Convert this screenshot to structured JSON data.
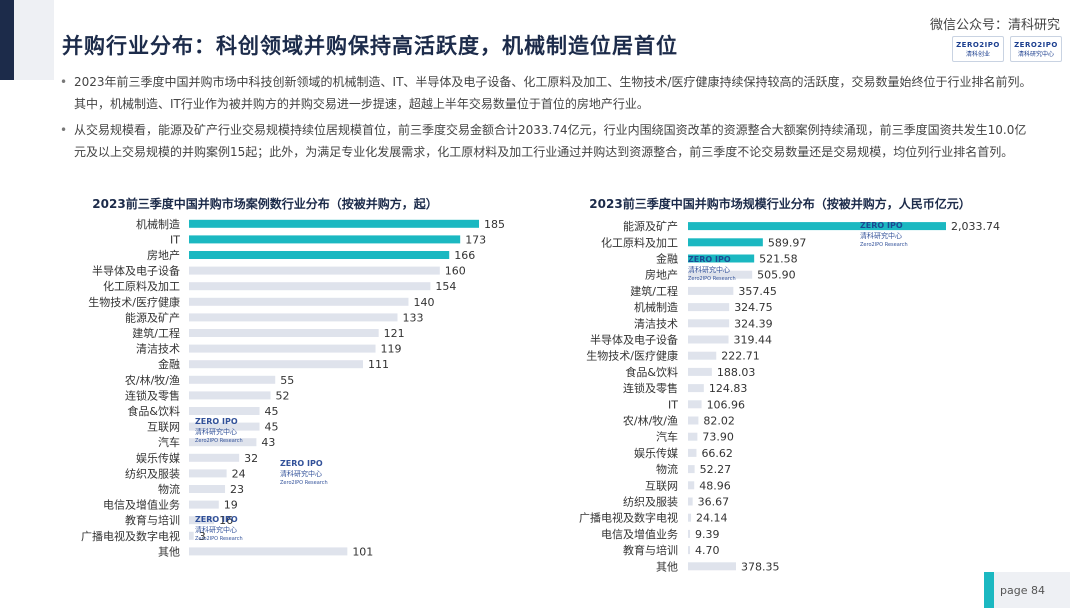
{
  "page": {
    "title": "并购行业分布：科创领域并购保持高活跃度，机械制造位居首位",
    "wechat_credit": "微信公众号：清科研究",
    "logos": [
      {
        "line1": "ZERO2IPO",
        "line2": "清科创业"
      },
      {
        "line1": "ZERO2IPO",
        "line2": "清科研究中心"
      }
    ],
    "bullets": [
      "2023年前三季度中国并购市场中科技创新领域的机械制造、IT、半导体及电子设备、化工原料及加工、生物技术/医疗健康持续保持较高的活跃度，交易数量始终位于行业排名前列。其中，机械制造、IT行业作为被并购方的并购交易进一步提速，超越上半年交易数量位于首位的房地产行业。",
      "从交易规模看，能源及矿产行业交易规模持续位居规模首位，前三季度交易金额合计2033.74亿元，行业内围绕国资改革的资源整合大额案例持续涌现，前三季度国资共发生10.0亿元及以上交易规模的并购案例15起；此外，为满足专业化发展需求，化工原材料及加工行业通过并购达到资源整合，前三季度不论交易数量还是交易规模，均位列行业排名首列。"
    ],
    "footer": {
      "page_label": "page  84"
    },
    "colors": {
      "highlight": "#1bb8c1",
      "bar": "#dfe3ec",
      "title": "#1c2b4a"
    },
    "watermark": {
      "line1": "ZERO IPO",
      "line2": "清科研究中心",
      "line3": "Zero2IPO Research"
    }
  },
  "chart_data": [
    {
      "type": "bar",
      "orientation": "horizontal",
      "title": "2023前三季度中国并购市场案例数行业分布（按被并购方，起）",
      "categories": [
        "机械制造",
        "IT",
        "房地产",
        "半导体及电子设备",
        "化工原料及加工",
        "生物技术/医疗健康",
        "能源及矿产",
        "建筑/工程",
        "清洁技术",
        "金融",
        "农/林/牧/渔",
        "连锁及零售",
        "食品&饮料",
        "互联网",
        "汽车",
        "娱乐传媒",
        "纺织及服装",
        "物流",
        "电信及增值业务",
        "教育与培训",
        "广播电视及数字电视",
        "其他"
      ],
      "values": [
        185,
        173,
        166,
        160,
        154,
        140,
        133,
        121,
        119,
        111,
        55,
        52,
        45,
        45,
        43,
        32,
        24,
        23,
        19,
        16,
        3,
        101
      ],
      "value_labels": [
        "185",
        "173",
        "166",
        "160",
        "154",
        "140",
        "133",
        "121",
        "119",
        "111",
        "55",
        "52",
        "45",
        "45",
        "43",
        "32",
        "24",
        "23",
        "19",
        "16",
        "3",
        "101"
      ],
      "highlight_top": 3,
      "xlim": [
        0,
        185
      ]
    },
    {
      "type": "bar",
      "orientation": "horizontal",
      "title": "2023前三季度中国并购市场规模行业分布（按被并购方，人民币亿元）",
      "categories": [
        "能源及矿产",
        "化工原料及加工",
        "金融",
        "房地产",
        "建筑/工程",
        "机械制造",
        "清洁技术",
        "半导体及电子设备",
        "生物技术/医疗健康",
        "食品&饮料",
        "连锁及零售",
        "IT",
        "农/林/牧/渔",
        "汽车",
        "娱乐传媒",
        "物流",
        "互联网",
        "纺织及服装",
        "广播电视及数字电视",
        "电信及增值业务",
        "教育与培训",
        "其他"
      ],
      "values": [
        2033.74,
        589.97,
        521.58,
        505.9,
        357.45,
        324.75,
        324.39,
        319.44,
        222.71,
        188.03,
        124.83,
        106.96,
        82.02,
        73.9,
        66.62,
        52.27,
        48.96,
        36.67,
        24.14,
        9.39,
        4.7,
        378.35
      ],
      "value_labels": [
        "2,033.74",
        "589.97",
        "521.58",
        "505.90",
        "357.45",
        "324.75",
        "324.39",
        "319.44",
        "222.71",
        "188.03",
        "124.83",
        "106.96",
        "82.02",
        "73.90",
        "66.62",
        "52.27",
        "48.96",
        "36.67",
        "24.14",
        "9.39",
        "4.70",
        "378.35"
      ],
      "highlight_top": 3,
      "xlim": [
        0,
        2033.74
      ]
    }
  ]
}
